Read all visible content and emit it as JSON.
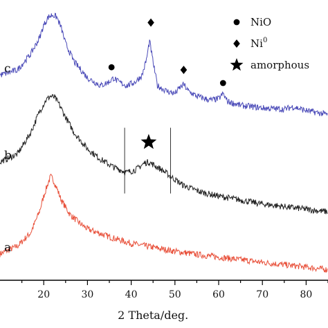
{
  "chart_data": {
    "type": "line",
    "xlabel": "2 Theta/deg.",
    "ylabel": "",
    "xlim": [
      10,
      85
    ],
    "ylim": [
      0,
      100
    ],
    "x_ticks": [
      "20",
      "30",
      "40",
      "50",
      "60",
      "70",
      "80"
    ],
    "grid": false,
    "series": [
      {
        "name": "a",
        "color": "#e8503a",
        "x": [
          10,
          14,
          17,
          19,
          20,
          21,
          21.6,
          22.2,
          23,
          24,
          26,
          28,
          30,
          35,
          40,
          45,
          50,
          55,
          60,
          65,
          70,
          75,
          80,
          85
        ],
        "y": [
          10,
          13,
          18,
          26,
          32,
          37,
          39.5,
          38,
          35,
          30.5,
          25,
          22,
          19.5,
          16.5,
          14,
          12.5,
          11,
          9.8,
          8.8,
          7.8,
          6.8,
          5.9,
          5,
          4
        ]
      },
      {
        "name": "b",
        "color": "#222222",
        "x": [
          10,
          14,
          17,
          19,
          20.5,
          21.5,
          22.5,
          23.5,
          25,
          27,
          30,
          33,
          36,
          39,
          41,
          43,
          44,
          45,
          47,
          49,
          52,
          56,
          60,
          65,
          70,
          75,
          80,
          85
        ],
        "y": [
          45,
          48,
          56,
          64,
          68.5,
          70,
          69.5,
          67,
          62,
          56,
          50,
          46,
          43,
          41,
          42,
          44.5,
          45,
          44,
          42,
          39.5,
          36,
          33.5,
          32,
          30.5,
          29,
          28,
          27,
          26
        ]
      },
      {
        "name": "c",
        "color": "#4a4ab8",
        "x": [
          10,
          14,
          17,
          19,
          20,
          21,
          22,
          23,
          24,
          25,
          27,
          30,
          33,
          35,
          36,
          37,
          39,
          41,
          42.5,
          43.5,
          44.2,
          45,
          46,
          48,
          50,
          51,
          52,
          53,
          55,
          58,
          60,
          61,
          62,
          65,
          70,
          75,
          77,
          80,
          85
        ],
        "y": [
          78,
          80,
          86,
          92,
          97,
          100,
          101,
          100,
          96,
          90,
          83,
          77,
          74,
          75.5,
          77,
          75.5,
          74,
          75.5,
          78,
          84,
          91,
          83,
          74,
          72,
          71,
          73,
          74.5,
          72,
          70,
          68.5,
          69,
          71,
          68,
          66.5,
          65.5,
          65,
          66,
          64.5,
          63
        ]
      }
    ],
    "series_labels": [
      "a",
      "b",
      "c"
    ],
    "legend": {
      "position": "top-right",
      "items": [
        {
          "label": "NiO",
          "marker": "circle"
        },
        {
          "label": "Ni",
          "superscript": "0",
          "marker": "diamond"
        },
        {
          "label": "amorphous",
          "marker": "star"
        }
      ]
    },
    "annotations": [
      {
        "marker": "circle",
        "x": 35.5,
        "y": 81
      },
      {
        "marker": "diamond",
        "x": 44.5,
        "y": 98
      },
      {
        "marker": "diamond",
        "x": 52,
        "y": 80
      },
      {
        "marker": "circle",
        "x": 61,
        "y": 75
      },
      {
        "marker": "star",
        "x": 44,
        "y": 52.5
      }
    ],
    "reference_lines_x": [
      38.5,
      49
    ]
  }
}
